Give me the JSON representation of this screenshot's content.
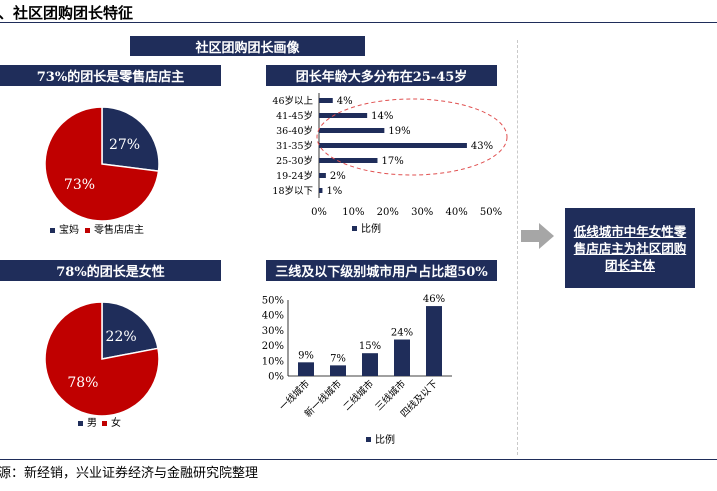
{
  "page": {
    "title": "、社区团购团长特征",
    "main_banner": "社区团购团长画像",
    "source": "源：新经销，兴业证券经济与金融研究院整理",
    "conclusion": "低线城市中年女性零售店店主为社区团购团长主体"
  },
  "colors": {
    "navy": "#1f2d5a",
    "red": "#c00000",
    "bar": "#1f2d5a"
  },
  "chart_data": [
    {
      "type": "pie",
      "title": "73%的团长是零售店店主",
      "labels": [
        "宝妈",
        "零售店店主"
      ],
      "values": [
        27,
        73
      ],
      "value_labels": [
        "27%",
        "73%"
      ],
      "colors": [
        "#1f2d5a",
        "#c00000"
      ],
      "legend": "bottom"
    },
    {
      "type": "bar",
      "orientation": "horizontal",
      "title": "团长年龄大多分布在25-45岁",
      "categories": [
        "46岁以上",
        "41-45岁",
        "36-40岁",
        "31-35岁",
        "25-30岁",
        "19-24岁",
        "18岁以下"
      ],
      "series": [
        {
          "name": "比例",
          "values": [
            4,
            14,
            19,
            43,
            17,
            2,
            1
          ]
        }
      ],
      "value_labels": [
        "4%",
        "14%",
        "19%",
        "43%",
        "17%",
        "2%",
        "1%"
      ],
      "x_ticks": [
        "0%",
        "10%",
        "20%",
        "30%",
        "40%",
        "50%"
      ],
      "xlim": [
        0,
        50
      ],
      "legend": "bottom"
    },
    {
      "type": "pie",
      "title": "78%的团长是女性",
      "labels": [
        "男",
        "女"
      ],
      "values": [
        22,
        78
      ],
      "value_labels": [
        "22%",
        "78%"
      ],
      "colors": [
        "#1f2d5a",
        "#c00000"
      ],
      "legend": "bottom"
    },
    {
      "type": "bar",
      "title": "三线及以下级别城市用户占比超50%",
      "categories": [
        "一线城市",
        "新一线城市",
        "二线城市",
        "三线城市",
        "四线及以下"
      ],
      "series": [
        {
          "name": "比例",
          "values": [
            9,
            7,
            15,
            24,
            46
          ]
        }
      ],
      "value_labels": [
        "9%",
        "7%",
        "15%",
        "24%",
        "46%"
      ],
      "y_ticks": [
        "0%",
        "10%",
        "20%",
        "30%",
        "40%",
        "50%"
      ],
      "ylim": [
        0,
        50
      ],
      "legend": "bottom"
    }
  ]
}
